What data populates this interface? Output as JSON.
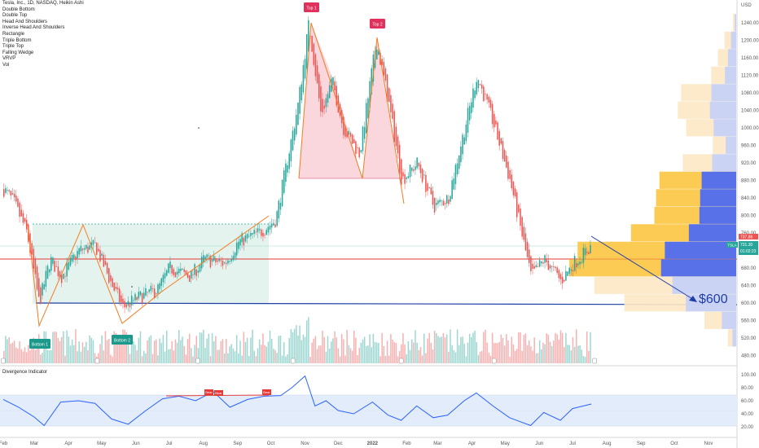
{
  "header": {
    "symbol_title": "Tesla, Inc., 1D, NASDAQ, Heikin Ashi"
  },
  "legend_items": [
    "Double Bottom",
    "Double Top",
    "Head And Shoulders",
    "Inverse Head And Shoulders",
    "Rectangle",
    "Triple Bottom",
    "Triple Top",
    "Falling Wedge",
    "VRVP",
    "Vol"
  ],
  "price_axis": {
    "currency": "USD",
    "ticks": [
      "1240.00",
      "1200.00",
      "1160.00",
      "1120.00",
      "1080.00",
      "1040.00",
      "1000.00",
      "960.00",
      "920.00",
      "880.00",
      "840.00",
      "800.00",
      "760.00",
      "720.00",
      "680.00",
      "640.00",
      "600.00",
      "560.00",
      "520.00",
      "480.00"
    ]
  },
  "time_axis": {
    "ticks": [
      "Feb",
      "Mar",
      "Apr",
      "May",
      "Jun",
      "Jul",
      "Aug",
      "Sep",
      "Oct",
      "Nov",
      "Dec",
      "2022",
      "Feb",
      "Mar",
      "Apr",
      "May",
      "Jun",
      "Jul",
      "Aug",
      "Sep",
      "Oct",
      "Nov"
    ]
  },
  "osc_axis": {
    "ticks": [
      "100.00",
      "80.00",
      "60.00",
      "40.00",
      "20.00"
    ]
  },
  "oscillator": {
    "title": "Divergence Indicator",
    "bear_label": "Bear"
  },
  "annotations": {
    "top1": "Top 1",
    "top2": "Top 2",
    "bottom1": "Bottom 1",
    "bottom2": "Bottom 2",
    "target": "$600"
  },
  "price_tag": {
    "ticker": "TSLA",
    "last": "731.30",
    "countdown": "01:02:23",
    "prev": "737.86"
  },
  "colors": {
    "up": "#26a69a",
    "down": "#ef5350",
    "top_fill": "#f8c4cf",
    "bottom_fill": "#cfe9e1",
    "pattern_line": "#f57c1f",
    "red_level": "#e53935",
    "blue_line": "#1e3ea8",
    "osc_line": "#2962ff",
    "vrvp_blue": "#4f6cf0",
    "vrvp_yellow": "#fbc84a",
    "badge_green": "#1b998b",
    "badge_red": "#e0315d"
  },
  "chart_data": [
    {
      "type": "candlestick",
      "title": "Tesla, Inc., 1D, NASDAQ, Heikin Ashi",
      "xlabel": "",
      "ylabel": "USD",
      "ylim": [
        470,
        1265
      ],
      "x": [
        "2021-02",
        "2021-03",
        "2021-04",
        "2021-05",
        "2021-06",
        "2021-07",
        "2021-08",
        "2021-09",
        "2021-10",
        "2021-11",
        "2021-12",
        "2022-01",
        "2022-02",
        "2022-03",
        "2022-04",
        "2022-05",
        "2022-06",
        "2022-07"
      ],
      "close_path": [
        [
          "2021-02-01",
          860
        ],
        [
          "2021-02-10",
          830
        ],
        [
          "2021-02-22",
          760
        ],
        [
          "2021-03-05",
          600
        ],
        [
          "2021-03-15",
          700
        ],
        [
          "2021-03-25",
          660
        ],
        [
          "2021-04-10",
          720
        ],
        [
          "2021-04-25",
          730
        ],
        [
          "2021-05-10",
          640
        ],
        [
          "2021-05-20",
          590
        ],
        [
          "2021-06-01",
          610
        ],
        [
          "2021-06-20",
          630
        ],
        [
          "2021-07-01",
          680
        ],
        [
          "2021-07-20",
          660
        ],
        [
          "2021-08-01",
          700
        ],
        [
          "2021-08-20",
          690
        ],
        [
          "2021-09-01",
          740
        ],
        [
          "2021-09-20",
          760
        ],
        [
          "2021-10-05",
          790
        ],
        [
          "2021-10-25",
          1050
        ],
        [
          "2021-11-04",
          1240
        ],
        [
          "2021-11-15",
          1030
        ],
        [
          "2021-11-25",
          1110
        ],
        [
          "2021-12-05",
          1000
        ],
        [
          "2021-12-20",
          940
        ],
        [
          "2022-01-04",
          1200
        ],
        [
          "2022-01-15",
          1060
        ],
        [
          "2022-01-27",
          880
        ],
        [
          "2022-02-10",
          920
        ],
        [
          "2022-02-25",
          820
        ],
        [
          "2022-03-10",
          840
        ],
        [
          "2022-03-25",
          1000
        ],
        [
          "2022-04-05",
          1120
        ],
        [
          "2022-04-20",
          1010
        ],
        [
          "2022-05-05",
          880
        ],
        [
          "2022-05-24",
          660
        ],
        [
          "2022-06-05",
          700
        ],
        [
          "2022-06-20",
          650
        ],
        [
          "2022-07-01",
          690
        ],
        [
          "2022-07-18",
          731
        ]
      ],
      "volume_profile": [
        [
          "1240",
          0.02
        ],
        [
          "1200",
          0.07
        ],
        [
          "1160",
          0.11
        ],
        [
          "1120",
          0.15
        ],
        [
          "1080",
          0.33
        ],
        [
          "1040",
          0.35
        ],
        [
          "1000",
          0.3
        ],
        [
          "960",
          0.14
        ],
        [
          "920",
          0.32
        ],
        [
          "880",
          0.46
        ],
        [
          "840",
          0.48
        ],
        [
          "800",
          0.49
        ],
        [
          "760",
          0.63
        ],
        [
          "720",
          0.95
        ],
        [
          "680",
          1.0
        ],
        [
          "640",
          0.85
        ],
        [
          "600",
          0.67
        ],
        [
          "560",
          0.19
        ],
        [
          "520",
          0.05
        ]
      ],
      "levels": {
        "rectangle_top": 784,
        "red_line": 704,
        "blue_line": 600,
        "target": 600
      }
    },
    {
      "type": "line",
      "title": "Divergence Indicator",
      "xlabel": "",
      "ylabel": "",
      "ylim": [
        0,
        105
      ],
      "bands": [
        30,
        70
      ],
      "path": [
        [
          "2021-02-01",
          62
        ],
        [
          "2021-02-15",
          50
        ],
        [
          "2021-03-01",
          35
        ],
        [
          "2021-03-10",
          22
        ],
        [
          "2021-03-25",
          58
        ],
        [
          "2021-04-10",
          60
        ],
        [
          "2021-04-25",
          56
        ],
        [
          "2021-05-10",
          32
        ],
        [
          "2021-05-25",
          24
        ],
        [
          "2021-06-10",
          45
        ],
        [
          "2021-06-25",
          63
        ],
        [
          "2021-07-10",
          67
        ],
        [
          "2021-07-25",
          60
        ],
        [
          "2021-08-10",
          74
        ],
        [
          "2021-08-25",
          50
        ],
        [
          "2021-09-10",
          62
        ],
        [
          "2021-09-25",
          67
        ],
        [
          "2021-10-10",
          68
        ],
        [
          "2021-10-20",
          80
        ],
        [
          "2021-11-01",
          98
        ],
        [
          "2021-11-10",
          52
        ],
        [
          "2021-11-20",
          60
        ],
        [
          "2021-12-01",
          45
        ],
        [
          "2021-12-15",
          40
        ],
        [
          "2022-01-01",
          58
        ],
        [
          "2022-01-15",
          38
        ],
        [
          "2022-01-27",
          30
        ],
        [
          "2022-02-10",
          52
        ],
        [
          "2022-02-25",
          34
        ],
        [
          "2022-03-10",
          38
        ],
        [
          "2022-03-25",
          60
        ],
        [
          "2022-04-05",
          72
        ],
        [
          "2022-04-20",
          52
        ],
        [
          "2022-05-05",
          34
        ],
        [
          "2022-05-24",
          22
        ],
        [
          "2022-06-05",
          42
        ],
        [
          "2022-06-20",
          30
        ],
        [
          "2022-07-01",
          48
        ],
        [
          "2022-07-18",
          55
        ]
      ]
    }
  ]
}
